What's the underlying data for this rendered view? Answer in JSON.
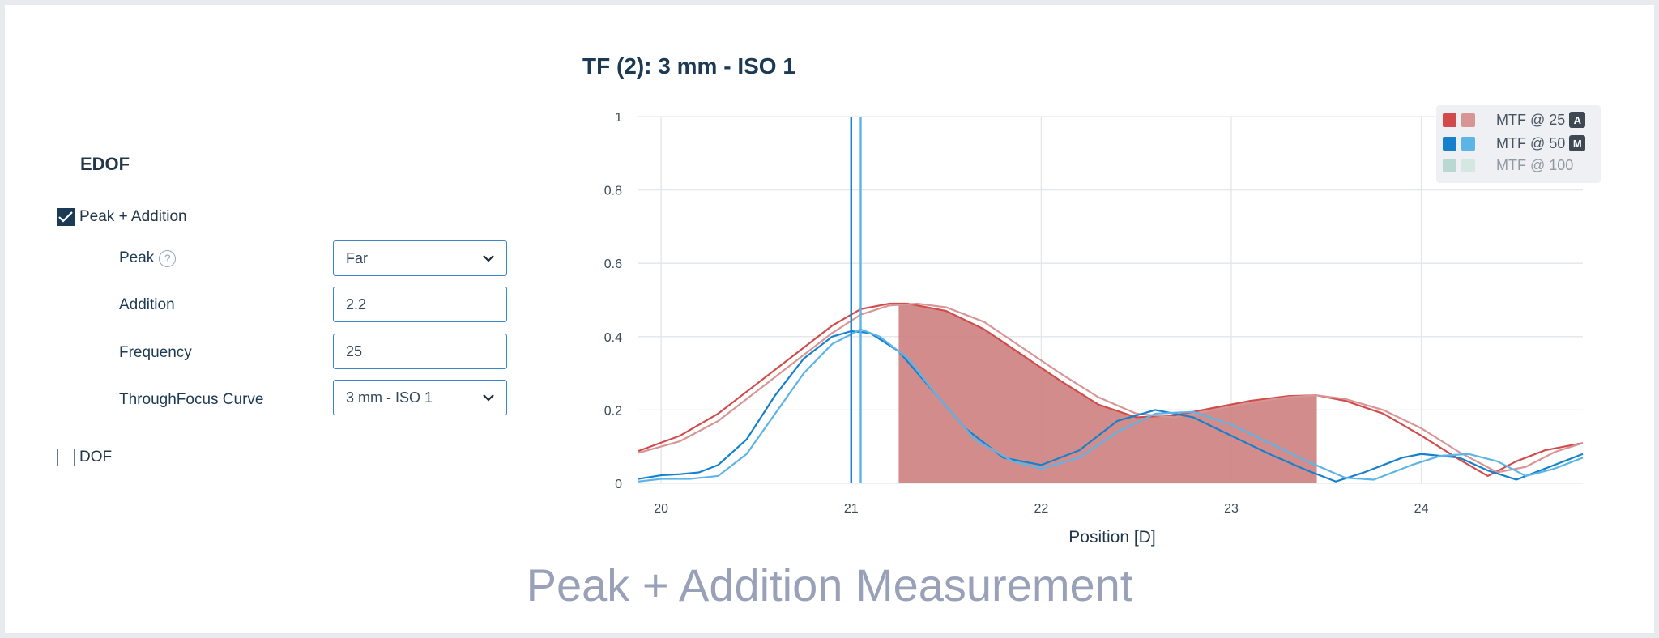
{
  "panel": {
    "section_title": "EDOF",
    "peak_addition_label": "Peak + Addition",
    "peak_addition_checked": true,
    "dof_label": "DOF",
    "dof_checked": false,
    "fields": {
      "peak": {
        "label": "Peak",
        "value": "Far"
      },
      "addition": {
        "label": "Addition",
        "value": "2.2"
      },
      "frequency": {
        "label": "Frequency",
        "value": "25"
      },
      "curve": {
        "label": "ThroughFocus Curve",
        "value": "3 mm - ISO 1"
      }
    }
  },
  "chart_data": {
    "type": "line",
    "title": "TF (2): 3 mm - ISO 1",
    "xlabel": "Position [D]",
    "ylabel": "",
    "xlim": [
      19.88,
      24.85
    ],
    "ylim": [
      0,
      1
    ],
    "xticks": [
      20,
      21,
      22,
      23,
      24
    ],
    "yticks": [
      0,
      0.2,
      0.4,
      0.6,
      0.8,
      1
    ],
    "ytick_labels": [
      "0",
      "0.2",
      "0.4",
      "0.6",
      "0.8",
      "1"
    ],
    "grid": true,
    "legend_position": "top-right",
    "legend": [
      {
        "label": "MTF @ 25",
        "badge": "A",
        "color_a": "#d24b4b",
        "color_b": "#d89595",
        "dimmed": false
      },
      {
        "label": "MTF @ 50",
        "badge": "M",
        "color_a": "#1580cc",
        "color_b": "#5db4e6",
        "dimmed": false
      },
      {
        "label": "MTF @ 100",
        "badge": "",
        "color_a": "#8fc6b2",
        "color_b": "#bfe3d4",
        "dimmed": true
      }
    ],
    "vertical_markers": [
      21.0,
      21.05
    ],
    "shaded_region": {
      "x": [
        21.25,
        23.45
      ],
      "color": "#cd7f7f"
    },
    "series": [
      {
        "name": "MTF @ 25",
        "color": "#d24b4b",
        "width": 2.2,
        "x": [
          19.88,
          20.1,
          20.3,
          20.5,
          20.7,
          20.9,
          21.05,
          21.2,
          21.3,
          21.5,
          21.7,
          21.9,
          22.1,
          22.3,
          22.5,
          22.7,
          22.9,
          23.1,
          23.3,
          23.45,
          23.6,
          23.8,
          24.0,
          24.2,
          24.35,
          24.5,
          24.65,
          24.85
        ],
        "y": [
          0.088,
          0.13,
          0.19,
          0.27,
          0.35,
          0.43,
          0.475,
          0.49,
          0.49,
          0.47,
          0.42,
          0.35,
          0.28,
          0.215,
          0.18,
          0.185,
          0.205,
          0.225,
          0.238,
          0.24,
          0.225,
          0.19,
          0.13,
          0.065,
          0.02,
          0.06,
          0.09,
          0.11
        ]
      },
      {
        "name": "MTF @ 25",
        "color": "#d89595",
        "width": 2.2,
        "x": [
          19.88,
          20.1,
          20.3,
          20.5,
          20.7,
          20.9,
          21.05,
          21.2,
          21.35,
          21.5,
          21.7,
          21.9,
          22.1,
          22.3,
          22.5,
          22.7,
          22.9,
          23.1,
          23.3,
          23.45,
          23.6,
          23.8,
          24.0,
          24.2,
          24.4,
          24.55,
          24.7,
          24.85
        ],
        "y": [
          0.083,
          0.115,
          0.17,
          0.25,
          0.33,
          0.41,
          0.46,
          0.485,
          0.49,
          0.48,
          0.44,
          0.37,
          0.3,
          0.235,
          0.19,
          0.18,
          0.2,
          0.22,
          0.235,
          0.24,
          0.23,
          0.2,
          0.15,
          0.085,
          0.03,
          0.045,
          0.085,
          0.11
        ]
      },
      {
        "name": "MTF @ 50",
        "color": "#1580cc",
        "width": 2.2,
        "x": [
          19.88,
          20.0,
          20.1,
          20.2,
          20.3,
          20.45,
          20.6,
          20.75,
          20.9,
          21.0,
          21.1,
          21.25,
          21.4,
          21.6,
          21.8,
          22.0,
          22.2,
          22.4,
          22.6,
          22.8,
          23.0,
          23.2,
          23.4,
          23.55,
          23.7,
          23.9,
          24.0,
          24.2,
          24.35,
          24.5,
          24.65,
          24.85
        ],
        "y": [
          0.012,
          0.022,
          0.025,
          0.03,
          0.05,
          0.12,
          0.24,
          0.34,
          0.4,
          0.415,
          0.41,
          0.36,
          0.27,
          0.15,
          0.07,
          0.05,
          0.09,
          0.17,
          0.2,
          0.18,
          0.13,
          0.08,
          0.035,
          0.005,
          0.03,
          0.07,
          0.08,
          0.07,
          0.035,
          0.01,
          0.04,
          0.08
        ]
      },
      {
        "name": "MTF @ 50",
        "color": "#5db4e6",
        "width": 2.2,
        "x": [
          19.88,
          20.0,
          20.15,
          20.3,
          20.45,
          20.6,
          20.75,
          20.9,
          21.05,
          21.15,
          21.3,
          21.45,
          21.65,
          21.85,
          22.0,
          22.2,
          22.4,
          22.6,
          22.8,
          23.0,
          23.2,
          23.4,
          23.6,
          23.75,
          23.95,
          24.1,
          24.25,
          24.4,
          24.55,
          24.7,
          24.85
        ],
        "y": [
          0.005,
          0.012,
          0.012,
          0.02,
          0.08,
          0.19,
          0.3,
          0.38,
          0.42,
          0.4,
          0.34,
          0.24,
          0.12,
          0.06,
          0.04,
          0.07,
          0.14,
          0.19,
          0.195,
          0.16,
          0.11,
          0.06,
          0.015,
          0.01,
          0.05,
          0.075,
          0.08,
          0.06,
          0.02,
          0.04,
          0.07
        ]
      }
    ]
  },
  "caption": "Peak + Addition Measurement"
}
